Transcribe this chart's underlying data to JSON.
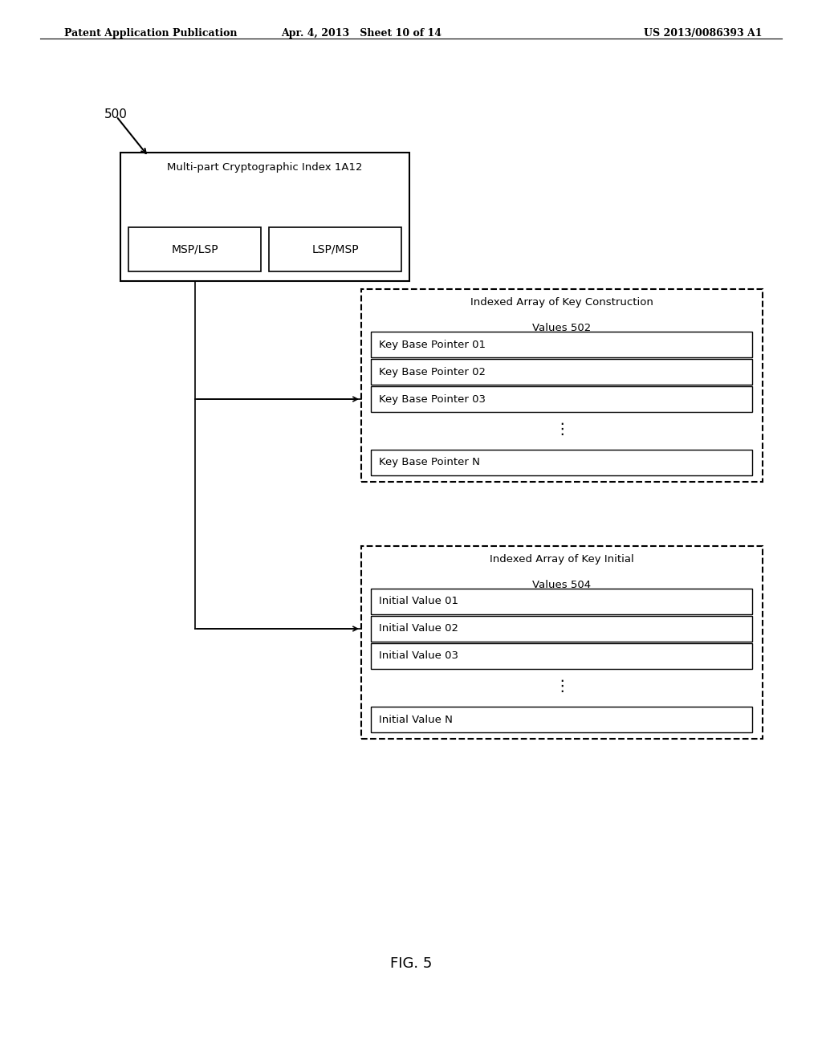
{
  "header_left": "Patent Application Publication",
  "header_middle": "Apr. 4, 2013   Sheet 10 of 14",
  "header_right": "US 2013/0086393 A1",
  "fig_label": "500",
  "fig_caption": "FIG. 5",
  "top_box_label": "Multi-part Cryptographic Index 1A12",
  "top_box_cells": [
    "MSP/LSP",
    "LSP/MSP"
  ],
  "box1_title_line1": "Indexed Array of Key Construction",
  "box1_title_line2": "Values 502",
  "box1_items": [
    "Key Base Pointer 01",
    "Key Base Pointer 02",
    "Key Base Pointer 03",
    "Key Base Pointer N"
  ],
  "box2_title_line1": "Indexed Array of Key Initial",
  "box2_title_line2": "Values 504",
  "box2_items": [
    "Initial Value 01",
    "Initial Value 02",
    "Initial Value 03",
    "Initial Value N"
  ],
  "background_color": "#ffffff",
  "box_edge_color": "#000000",
  "text_color": "#000000",
  "font_size_header": 10,
  "font_size_body": 10,
  "font_size_label": 11
}
